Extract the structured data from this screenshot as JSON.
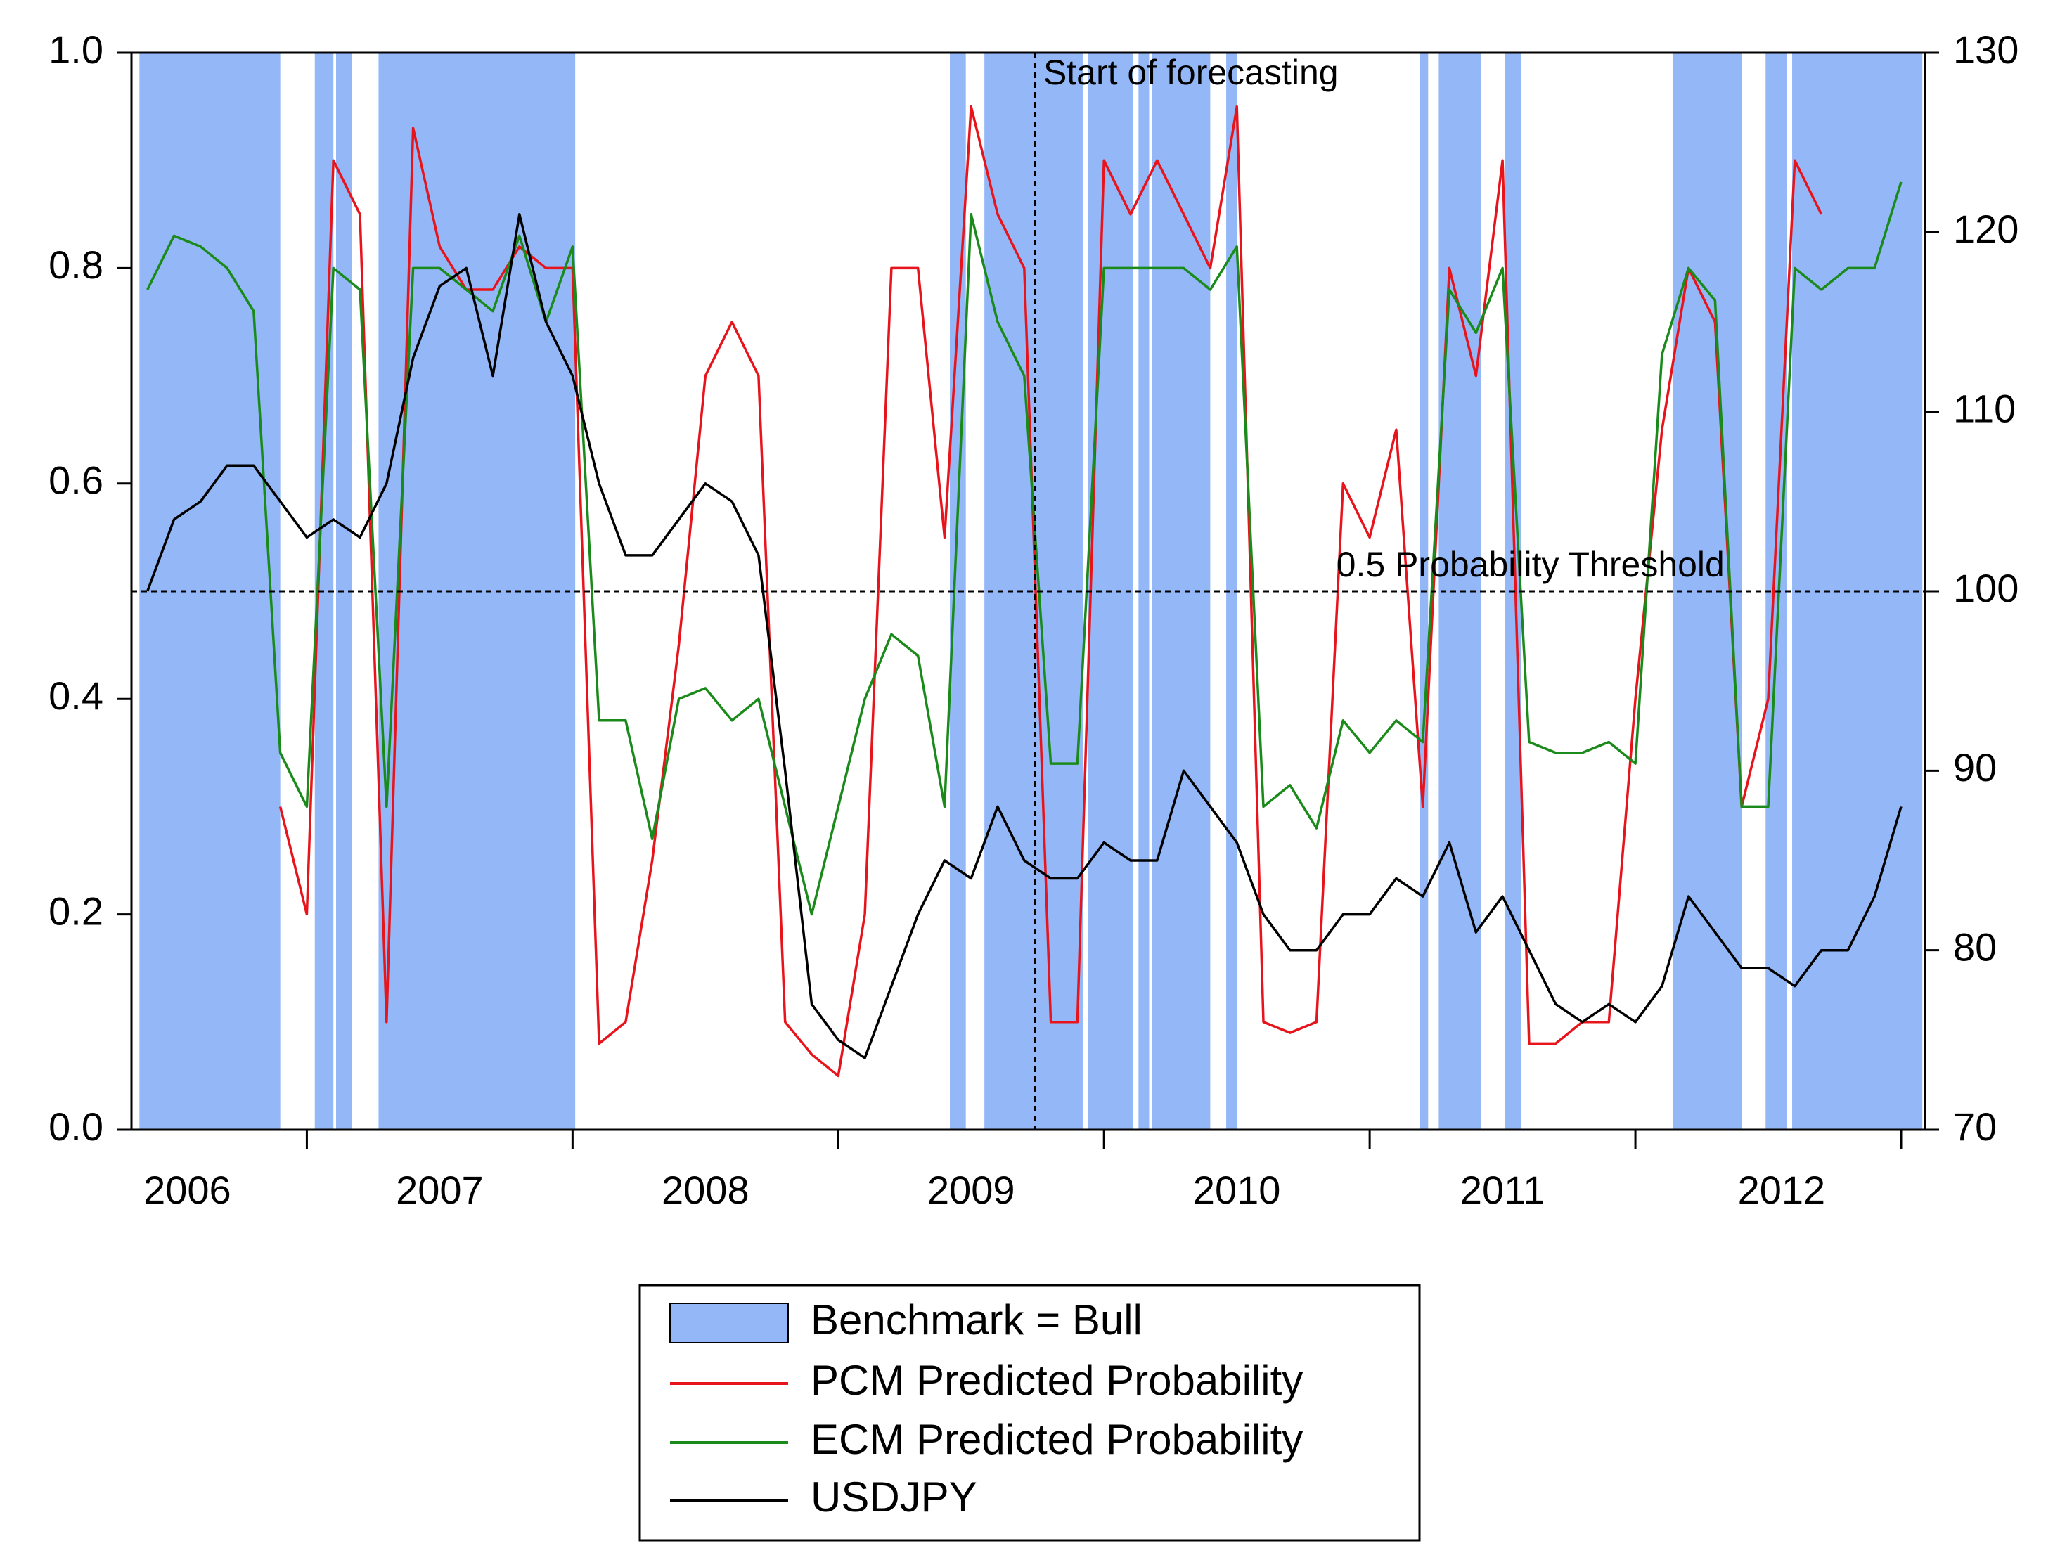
{
  "chart_data": {
    "type": "line",
    "xlim": [
      2006.34,
      2013.09
    ],
    "xticks": [
      2007,
      2008,
      2009,
      2010,
      2011,
      2012,
      2013
    ],
    "x_labels": [
      {
        "value": 2006.55,
        "label": "2006"
      },
      {
        "value": 2007.5,
        "label": "2007"
      },
      {
        "value": 2008.5,
        "label": "2008"
      },
      {
        "value": 2009.5,
        "label": "2009"
      },
      {
        "value": 2010.5,
        "label": "2010"
      },
      {
        "value": 2011.5,
        "label": "2011"
      },
      {
        "value": 2012.55,
        "label": "2012"
      }
    ],
    "ylim": [
      0,
      1
    ],
    "yticks": [
      {
        "value": 0,
        "label": "0.0"
      },
      0.2,
      0.4,
      0.6,
      0.8,
      {
        "value": 1,
        "label": "1.0"
      }
    ],
    "y2lim": [
      70,
      130
    ],
    "y2ticks": [
      70,
      80,
      90,
      100,
      110,
      120,
      130
    ],
    "bull_name": "Benchmark = Bull",
    "bull_color": "#94b8f7",
    "bull_periods": [
      [
        2006.37,
        2006.9
      ],
      [
        2007.03,
        2007.1
      ],
      [
        2007.11,
        2007.17
      ],
      [
        2007.27,
        2008.01
      ],
      [
        2009.42,
        2009.48
      ],
      [
        2009.55,
        2009.92
      ],
      [
        2009.94,
        2010.11
      ],
      [
        2010.13,
        2010.17
      ],
      [
        2010.18,
        2010.4
      ],
      [
        2010.46,
        2010.5
      ],
      [
        2011.19,
        2011.22
      ],
      [
        2011.26,
        2011.42
      ],
      [
        2011.51,
        2011.57
      ],
      [
        2012.14,
        2012.4
      ],
      [
        2012.49,
        2012.57
      ],
      [
        2012.59,
        2013.08
      ]
    ],
    "annotations": [
      {
        "text": "Start of forecasting",
        "x": 2009.74
      },
      {
        "text": "0.5 Probability Threshold",
        "y": 0.5
      }
    ],
    "x": [
      2006.4,
      2006.5,
      2006.6,
      2006.7,
      2006.8,
      2006.9,
      2007.0,
      2007.1,
      2007.2,
      2007.3,
      2007.4,
      2007.5,
      2007.6,
      2007.7,
      2007.8,
      2007.9,
      2008.0,
      2008.1,
      2008.2,
      2008.3,
      2008.4,
      2008.5,
      2008.6,
      2008.7,
      2008.8,
      2008.9,
      2009.0,
      2009.1,
      2009.2,
      2009.3,
      2009.4,
      2009.5,
      2009.6,
      2009.7,
      2009.8,
      2009.9,
      2010.0,
      2010.1,
      2010.2,
      2010.3,
      2010.4,
      2010.5,
      2010.6,
      2010.7,
      2010.8,
      2010.9,
      2011.0,
      2011.1,
      2011.2,
      2011.3,
      2011.4,
      2011.5,
      2011.6,
      2011.7,
      2011.8,
      2011.9,
      2012.0,
      2012.1,
      2012.2,
      2012.3,
      2012.4,
      2012.5,
      2012.6,
      2012.7,
      2012.8,
      2012.9,
      2013.0
    ],
    "series": [
      {
        "name": "PCM Predicted Probability",
        "color": "#e8141c",
        "values": [
          null,
          null,
          null,
          null,
          null,
          0.3,
          0.2,
          0.9,
          0.85,
          0.1,
          0.93,
          0.82,
          0.78,
          0.78,
          0.82,
          0.8,
          0.8,
          0.08,
          0.1,
          0.25,
          0.45,
          0.7,
          0.75,
          0.7,
          0.1,
          0.07,
          0.05,
          0.2,
          0.8,
          0.8,
          0.55,
          0.95,
          0.85,
          0.8,
          0.1,
          0.1,
          0.9,
          0.85,
          0.9,
          0.85,
          0.8,
          0.95,
          0.1,
          0.09,
          0.1,
          0.6,
          0.55,
          0.65,
          0.3,
          0.8,
          0.7,
          0.9,
          0.08,
          0.08,
          0.1,
          0.1,
          0.4,
          0.65,
          0.8,
          0.75,
          0.3,
          0.4,
          0.9,
          0.85,
          null,
          null,
          null
        ]
      },
      {
        "name": "ECM Predicted Probability",
        "color": "#1a8a1a",
        "values": [
          0.78,
          0.83,
          0.82,
          0.8,
          0.76,
          0.35,
          0.3,
          0.8,
          0.78,
          0.3,
          0.8,
          0.8,
          0.78,
          0.76,
          0.83,
          0.75,
          0.82,
          0.38,
          0.38,
          0.27,
          0.4,
          0.41,
          0.38,
          0.4,
          0.3,
          0.2,
          0.3,
          0.4,
          0.46,
          0.44,
          0.3,
          0.85,
          0.75,
          0.7,
          0.34,
          0.34,
          0.8,
          0.8,
          0.8,
          0.8,
          0.78,
          0.82,
          0.3,
          0.32,
          0.28,
          0.38,
          0.35,
          0.38,
          0.36,
          0.78,
          0.74,
          0.8,
          0.36,
          0.35,
          0.35,
          0.36,
          0.34,
          0.72,
          0.8,
          0.77,
          0.3,
          0.3,
          0.8,
          0.78,
          0.8,
          0.8,
          0.88
        ]
      },
      {
        "name": "USDJPY",
        "color": "#000000",
        "axis": "y2",
        "values": [
          100,
          104,
          105,
          107,
          107,
          105,
          103,
          104,
          103,
          106,
          113,
          117,
          118,
          112,
          121,
          115,
          112,
          106,
          102,
          102,
          104,
          106,
          105,
          102,
          90,
          77,
          75,
          74,
          78,
          82,
          85,
          84,
          88,
          85,
          84,
          84,
          86,
          85,
          85,
          90,
          88,
          86,
          82,
          80,
          80,
          82,
          82,
          84,
          83,
          86,
          81,
          83,
          80,
          77,
          76,
          77,
          76,
          78,
          83,
          81,
          79,
          79,
          78,
          80,
          80,
          83,
          88
        ]
      }
    ]
  }
}
